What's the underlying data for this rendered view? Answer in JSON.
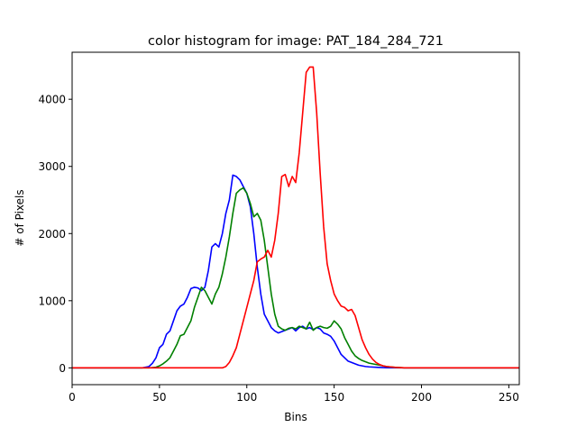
{
  "chart_data": {
    "type": "line",
    "title": "color histogram for image: PAT_184_284_721",
    "xlabel": "Bins",
    "ylabel": "# of Pixels",
    "xlim": [
      0,
      256
    ],
    "ylim": [
      -250,
      4700
    ],
    "xticks": [
      0,
      50,
      100,
      150,
      200,
      250
    ],
    "yticks": [
      0,
      1000,
      2000,
      3000,
      4000
    ],
    "grid": false,
    "legend": "none",
    "series": [
      {
        "color": "#0000ff",
        "points": [
          [
            0,
            0
          ],
          [
            40,
            0
          ],
          [
            44,
            20
          ],
          [
            46,
            70
          ],
          [
            48,
            150
          ],
          [
            50,
            300
          ],
          [
            52,
            350
          ],
          [
            54,
            500
          ],
          [
            56,
            550
          ],
          [
            58,
            700
          ],
          [
            60,
            850
          ],
          [
            62,
            920
          ],
          [
            64,
            950
          ],
          [
            66,
            1050
          ],
          [
            68,
            1180
          ],
          [
            70,
            1200
          ],
          [
            72,
            1190
          ],
          [
            74,
            1150
          ],
          [
            76,
            1200
          ],
          [
            78,
            1450
          ],
          [
            80,
            1800
          ],
          [
            82,
            1850
          ],
          [
            84,
            1800
          ],
          [
            86,
            2000
          ],
          [
            88,
            2300
          ],
          [
            90,
            2500
          ],
          [
            92,
            2870
          ],
          [
            94,
            2850
          ],
          [
            96,
            2800
          ],
          [
            98,
            2700
          ],
          [
            100,
            2600
          ],
          [
            102,
            2400
          ],
          [
            104,
            2000
          ],
          [
            106,
            1500
          ],
          [
            108,
            1100
          ],
          [
            110,
            800
          ],
          [
            112,
            700
          ],
          [
            114,
            600
          ],
          [
            116,
            550
          ],
          [
            118,
            520
          ],
          [
            120,
            540
          ],
          [
            122,
            560
          ],
          [
            124,
            580
          ],
          [
            126,
            600
          ],
          [
            128,
            550
          ],
          [
            130,
            600
          ],
          [
            132,
            620
          ],
          [
            134,
            580
          ],
          [
            136,
            600
          ],
          [
            138,
            570
          ],
          [
            140,
            600
          ],
          [
            142,
            580
          ],
          [
            144,
            520
          ],
          [
            146,
            500
          ],
          [
            148,
            470
          ],
          [
            150,
            400
          ],
          [
            152,
            300
          ],
          [
            154,
            200
          ],
          [
            156,
            150
          ],
          [
            158,
            100
          ],
          [
            160,
            80
          ],
          [
            162,
            60
          ],
          [
            164,
            40
          ],
          [
            166,
            30
          ],
          [
            168,
            20
          ],
          [
            170,
            15
          ],
          [
            175,
            8
          ],
          [
            180,
            3
          ],
          [
            190,
            0
          ],
          [
            256,
            0
          ]
        ]
      },
      {
        "color": "#008000",
        "points": [
          [
            0,
            0
          ],
          [
            44,
            0
          ],
          [
            48,
            10
          ],
          [
            50,
            30
          ],
          [
            52,
            60
          ],
          [
            54,
            100
          ],
          [
            56,
            150
          ],
          [
            58,
            250
          ],
          [
            60,
            350
          ],
          [
            62,
            480
          ],
          [
            64,
            500
          ],
          [
            66,
            600
          ],
          [
            68,
            700
          ],
          [
            70,
            900
          ],
          [
            72,
            1050
          ],
          [
            74,
            1200
          ],
          [
            76,
            1150
          ],
          [
            78,
            1050
          ],
          [
            80,
            950
          ],
          [
            82,
            1100
          ],
          [
            84,
            1200
          ],
          [
            86,
            1400
          ],
          [
            88,
            1650
          ],
          [
            90,
            1950
          ],
          [
            92,
            2300
          ],
          [
            94,
            2600
          ],
          [
            96,
            2650
          ],
          [
            98,
            2680
          ],
          [
            100,
            2600
          ],
          [
            102,
            2450
          ],
          [
            104,
            2250
          ],
          [
            106,
            2300
          ],
          [
            108,
            2200
          ],
          [
            110,
            1900
          ],
          [
            112,
            1500
          ],
          [
            114,
            1100
          ],
          [
            116,
            800
          ],
          [
            118,
            620
          ],
          [
            120,
            580
          ],
          [
            122,
            560
          ],
          [
            124,
            590
          ],
          [
            126,
            600
          ],
          [
            128,
            580
          ],
          [
            130,
            620
          ],
          [
            132,
            600
          ],
          [
            134,
            580
          ],
          [
            136,
            680
          ],
          [
            138,
            560
          ],
          [
            140,
            600
          ],
          [
            142,
            620
          ],
          [
            144,
            600
          ],
          [
            146,
            590
          ],
          [
            148,
            620
          ],
          [
            150,
            700
          ],
          [
            152,
            650
          ],
          [
            154,
            580
          ],
          [
            156,
            450
          ],
          [
            158,
            350
          ],
          [
            160,
            250
          ],
          [
            162,
            180
          ],
          [
            164,
            140
          ],
          [
            166,
            110
          ],
          [
            168,
            90
          ],
          [
            170,
            70
          ],
          [
            175,
            45
          ],
          [
            180,
            20
          ],
          [
            185,
            8
          ],
          [
            190,
            0
          ],
          [
            256,
            0
          ]
        ]
      },
      {
        "color": "#ff0000",
        "points": [
          [
            0,
            0
          ],
          [
            86,
            0
          ],
          [
            88,
            20
          ],
          [
            90,
            80
          ],
          [
            92,
            180
          ],
          [
            94,
            300
          ],
          [
            96,
            500
          ],
          [
            98,
            700
          ],
          [
            100,
            900
          ],
          [
            102,
            1100
          ],
          [
            104,
            1300
          ],
          [
            106,
            1580
          ],
          [
            108,
            1620
          ],
          [
            110,
            1650
          ],
          [
            112,
            1750
          ],
          [
            114,
            1650
          ],
          [
            116,
            1900
          ],
          [
            118,
            2300
          ],
          [
            120,
            2850
          ],
          [
            122,
            2880
          ],
          [
            124,
            2700
          ],
          [
            126,
            2850
          ],
          [
            128,
            2760
          ],
          [
            130,
            3200
          ],
          [
            132,
            3800
          ],
          [
            134,
            4400
          ],
          [
            136,
            4480
          ],
          [
            138,
            4480
          ],
          [
            140,
            3800
          ],
          [
            142,
            2900
          ],
          [
            144,
            2100
          ],
          [
            146,
            1550
          ],
          [
            148,
            1300
          ],
          [
            150,
            1100
          ],
          [
            152,
            1000
          ],
          [
            154,
            920
          ],
          [
            156,
            900
          ],
          [
            158,
            850
          ],
          [
            160,
            870
          ],
          [
            162,
            780
          ],
          [
            164,
            600
          ],
          [
            166,
            420
          ],
          [
            168,
            300
          ],
          [
            170,
            200
          ],
          [
            172,
            130
          ],
          [
            174,
            80
          ],
          [
            176,
            50
          ],
          [
            178,
            30
          ],
          [
            180,
            20
          ],
          [
            185,
            8
          ],
          [
            190,
            0
          ],
          [
            256,
            0
          ]
        ]
      }
    ]
  }
}
